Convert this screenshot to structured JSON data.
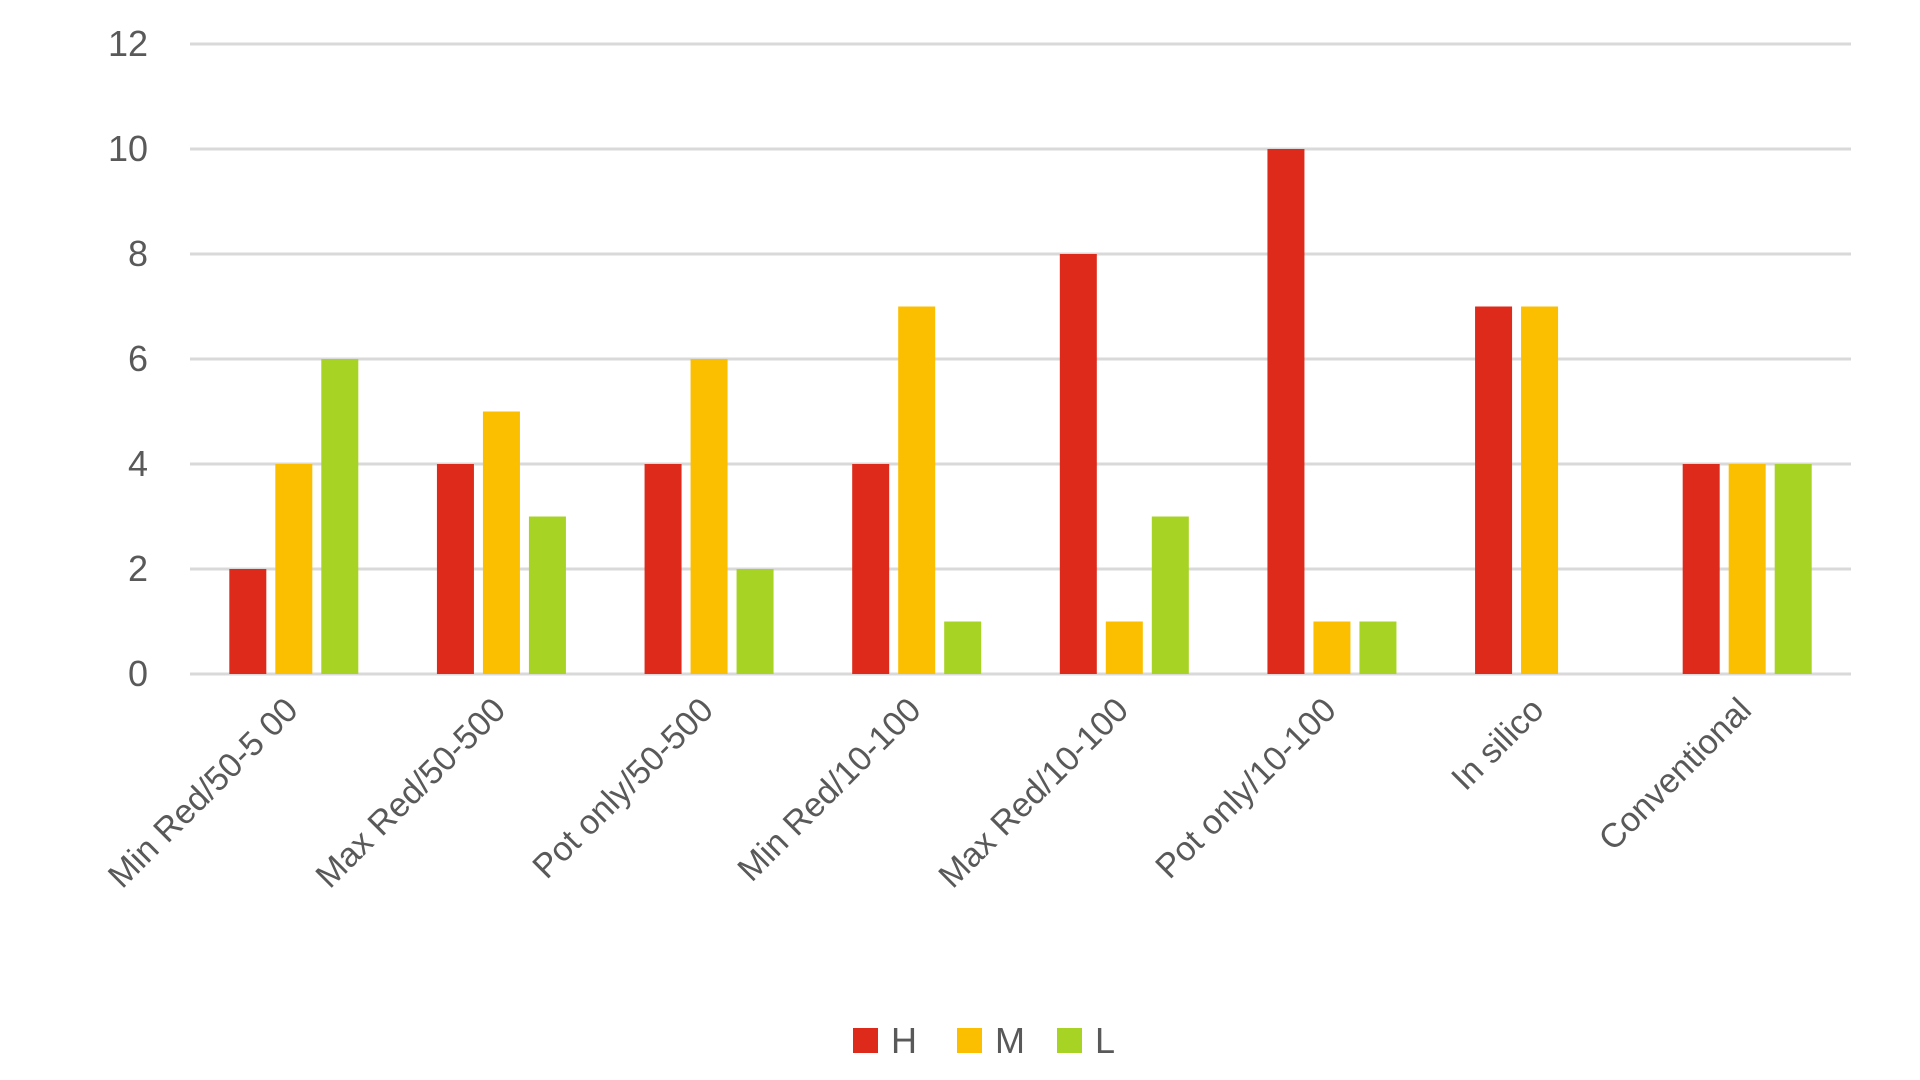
{
  "chart_data": {
    "type": "bar",
    "title": "",
    "xlabel": "",
    "ylabel": "",
    "ylim": [
      0,
      12
    ],
    "yticks": [
      0,
      2,
      4,
      6,
      8,
      10,
      12
    ],
    "grid": true,
    "legend_position": "bottom",
    "categories": [
      "Min Red/50-5 00",
      "Max Red/50-500",
      "Pot only/50-500",
      "Min Red/10-100",
      "Max Red/10-100",
      "Pot only/10-100",
      "In silico",
      "Conventional"
    ],
    "series": [
      {
        "name": "H",
        "color": "#DE2A1B",
        "values": [
          2,
          4,
          4,
          4,
          8,
          10,
          7,
          4
        ]
      },
      {
        "name": "M",
        "color": "#FCBF00",
        "values": [
          4,
          5,
          6,
          7,
          1,
          1,
          7,
          4
        ]
      },
      {
        "name": "L",
        "color": "#A7D324",
        "values": [
          6,
          3,
          2,
          1,
          3,
          1,
          0,
          4
        ]
      }
    ]
  },
  "legend": {
    "items": [
      {
        "label": "H",
        "color": "#DE2A1B"
      },
      {
        "label": "M",
        "color": "#FCBF00"
      },
      {
        "label": "L",
        "color": "#A7D324"
      }
    ]
  },
  "style": {
    "gridline_color": "#D9D9D9",
    "text_color": "#595959",
    "background": "#FFFFFF"
  }
}
